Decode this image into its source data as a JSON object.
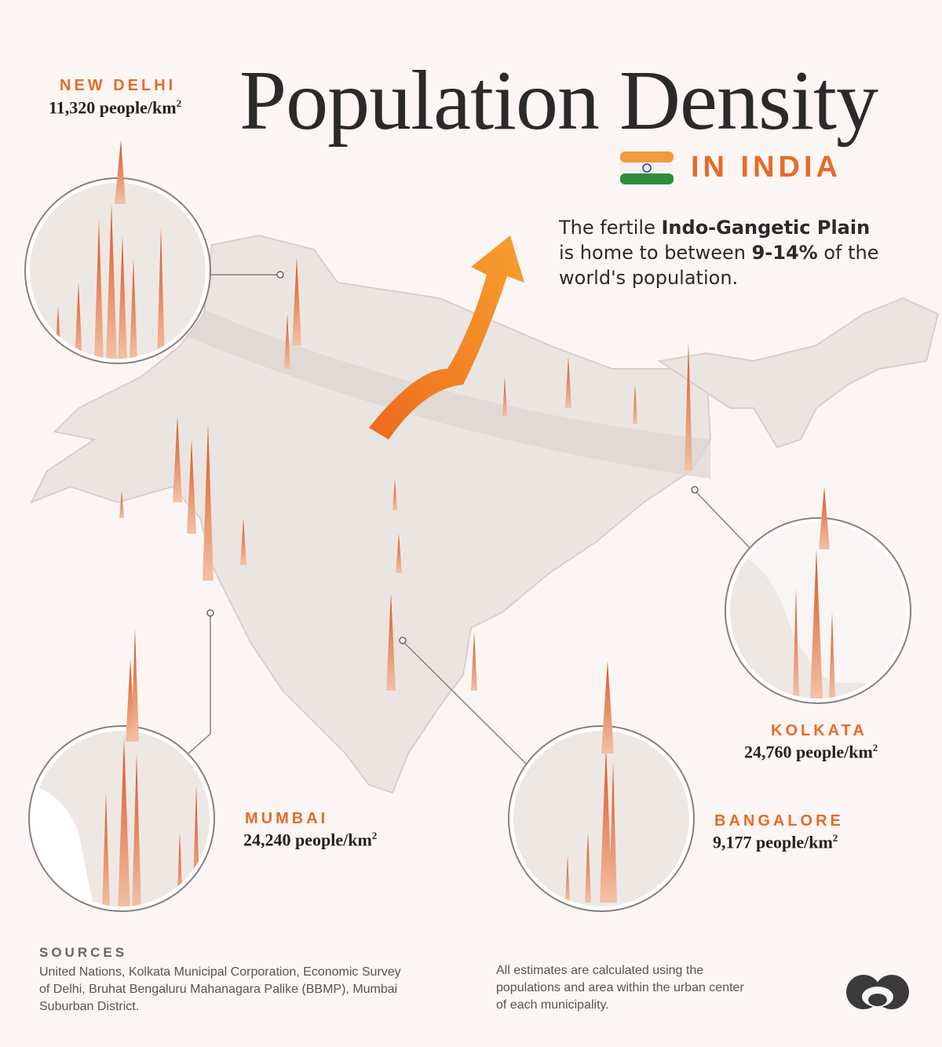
{
  "header": {
    "title": "Population Density",
    "subtitle": "IN INDIA"
  },
  "callout": {
    "text_1": "The fertile ",
    "bold_1": "Indo-Gangetic Plain",
    "text_2": " is home to between ",
    "bold_2": "9-14%",
    "text_3": " of the world's population."
  },
  "cities": {
    "new_delhi": {
      "name": "NEW DELHI",
      "value": "11,320 people/km",
      "unit_sup": "2"
    },
    "kolkata": {
      "name": "KOLKATA",
      "value": "24,760 people/km",
      "unit_sup": "2"
    },
    "mumbai": {
      "name": "MUMBAI",
      "value": "24,240 people/km",
      "unit_sup": "2"
    },
    "bangalore": {
      "name": "BANGALORE",
      "value": "9,177 people/km",
      "unit_sup": "2"
    }
  },
  "sources": {
    "heading": "SOURCES",
    "text": "United Nations, Kolkata Municipal Corporation, Economic Survey of Delhi, Bruhat Bengaluru Mahanagara Palike (BBMP), Mumbai Suburban District."
  },
  "note": "All estimates are calculated using the populations and area within the urban center of each municipality.",
  "colors": {
    "accent": "#e86a2a",
    "spike": "#e8703a",
    "land": "#ece6e3",
    "background": "#fbf6f4"
  },
  "icons": {
    "flag": "india-flag-icon",
    "logo": "visual-capitalist-logo-icon",
    "arrow": "curved-arrow-icon"
  }
}
